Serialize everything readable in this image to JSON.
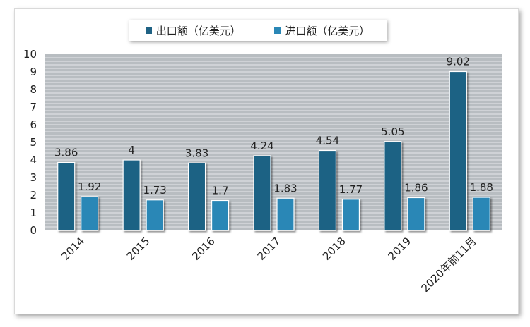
{
  "chart_data": {
    "type": "bar",
    "categories": [
      "2014",
      "2015",
      "2016",
      "2017",
      "2018",
      "2019",
      "2020年前11月"
    ],
    "series": [
      {
        "name": "出口额（亿美元）",
        "values": [
          3.86,
          4,
          3.83,
          4.24,
          4.54,
          5.05,
          9.02
        ],
        "labels": [
          "3.86",
          "4",
          "3.83",
          "4.24",
          "4.54",
          "5.05",
          "9.02"
        ],
        "color": "#1f6284"
      },
      {
        "name": "进口额（亿美元）",
        "values": [
          1.92,
          1.73,
          1.7,
          1.83,
          1.77,
          1.86,
          1.88
        ],
        "labels": [
          "1.92",
          "1.73",
          "1.7",
          "1.83",
          "1.77",
          "1.86",
          "1.88"
        ],
        "color": "#2a87b6"
      }
    ],
    "y_ticks": [
      "0",
      "1",
      "2",
      "3",
      "4",
      "5",
      "6",
      "7",
      "8",
      "9",
      "10"
    ],
    "ylim": [
      0,
      10
    ],
    "grid": true,
    "legend_position": "top-center",
    "plot_background": "#b8bdc1",
    "title": "",
    "xlabel": "",
    "ylabel": ""
  }
}
